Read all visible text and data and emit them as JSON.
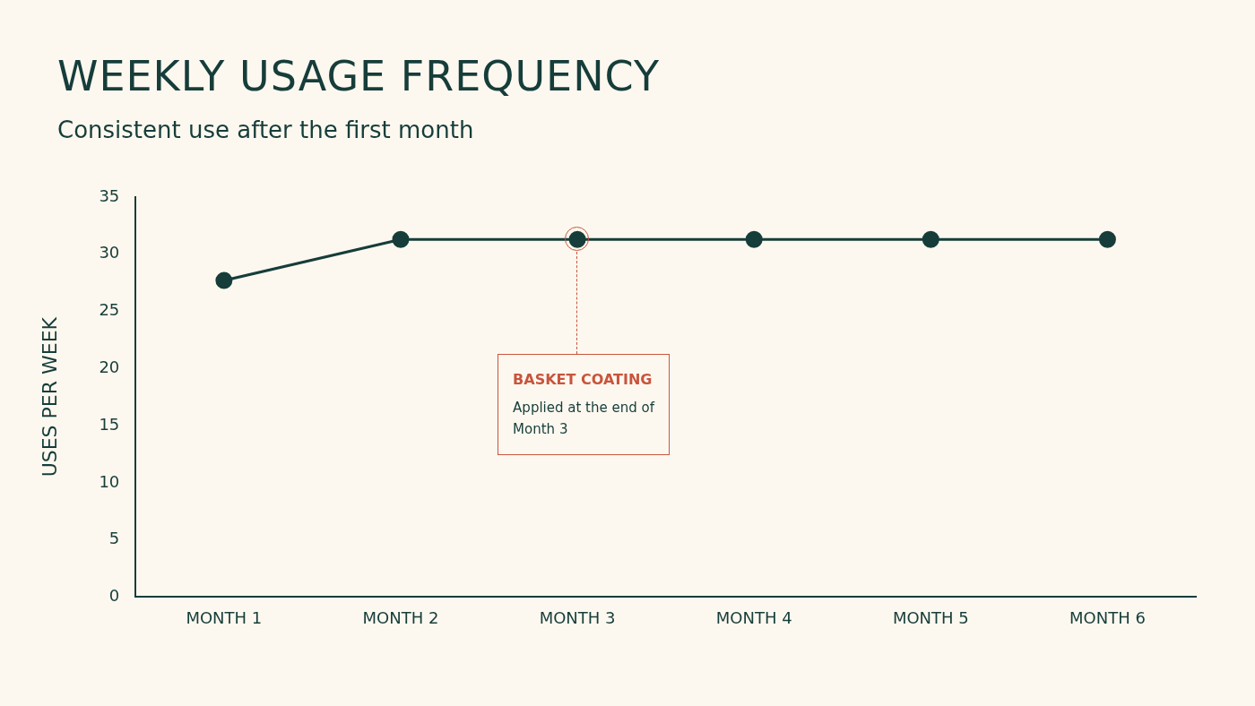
{
  "chart_data": {
    "type": "line",
    "title": "WEEKLY USAGE FREQUENCY",
    "subtitle": "Consistent use after the first month",
    "ylabel": "USES PER WEEK",
    "categories": [
      "MONTH 1",
      "MONTH 2",
      "MONTH 3",
      "MONTH 4",
      "MONTH 5",
      "MONTH 6"
    ],
    "series": [
      {
        "color": "#163d3a",
        "values": [
          27.7,
          31.3,
          31.3,
          31.3,
          31.3,
          31.3
        ]
      }
    ],
    "ylim": [
      0,
      35
    ],
    "yticks": [
      0,
      5,
      10,
      15,
      20,
      25,
      30,
      35
    ],
    "grid": false,
    "legend": false,
    "marker": "circle",
    "line_style": "solid",
    "annotations": [
      "BASKET COATING",
      "Applied at the end of Month 3"
    ]
  }
}
